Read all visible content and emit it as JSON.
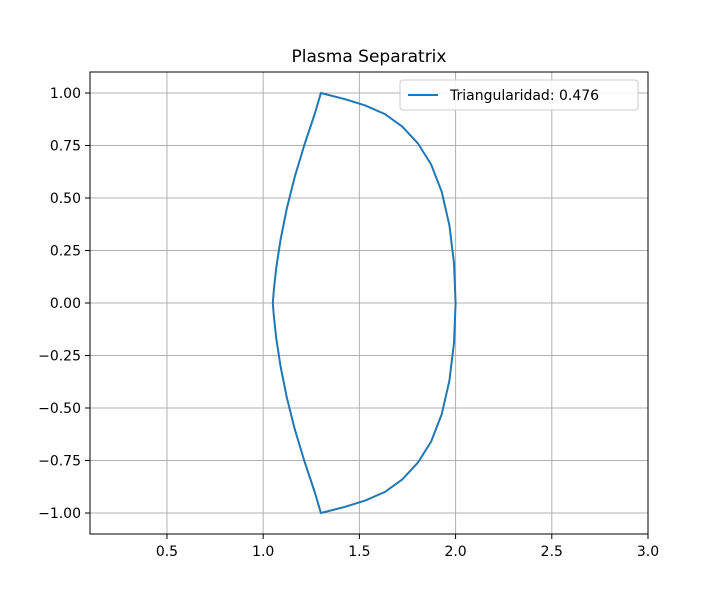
{
  "chart_data": {
    "type": "line",
    "title": "Plasma Separatrix",
    "xlabel": "",
    "ylabel": "",
    "xlim": [
      0.1,
      3.0
    ],
    "ylim": [
      -1.1,
      1.1
    ],
    "xticks": [
      0.5,
      1.0,
      1.5,
      2.0,
      2.5,
      3.0
    ],
    "xtick_labels": [
      "0.5",
      "1.0",
      "1.5",
      "2.0",
      "2.5",
      "3.0"
    ],
    "yticks": [
      1.0,
      0.75,
      0.5,
      0.25,
      0.0,
      -0.25,
      -0.5,
      -0.75,
      -1.0
    ],
    "ytick_labels": [
      "1.00",
      "0.75",
      "0.50",
      "0.25",
      "0.00",
      "−0.25",
      "−0.50",
      "−0.75",
      "−1.00"
    ],
    "grid": true,
    "legend_position": "top-right",
    "series": [
      {
        "name": "Triangularidad: 0.476",
        "color": "#1f77b4",
        "x": [
          2.0,
          1.992,
          1.968,
          1.928,
          1.873,
          1.804,
          1.723,
          1.632,
          1.532,
          1.428,
          1.3,
          1.268,
          1.213,
          1.164,
          1.123,
          1.09,
          1.068,
          1.055,
          1.05,
          1.055,
          1.068,
          1.09,
          1.123,
          1.164,
          1.213,
          1.268,
          1.3,
          1.428,
          1.532,
          1.632,
          1.723,
          1.804,
          1.873,
          1.928,
          1.968,
          1.992,
          2.0
        ],
        "y": [
          0.0,
          0.19,
          0.37,
          0.53,
          0.66,
          0.76,
          0.84,
          0.9,
          0.94,
          0.97,
          1.0,
          0.9,
          0.75,
          0.6,
          0.45,
          0.3,
          0.17,
          0.06,
          0.0,
          -0.06,
          -0.17,
          -0.3,
          -0.45,
          -0.6,
          -0.75,
          -0.9,
          -1.0,
          -0.97,
          -0.94,
          -0.9,
          -0.84,
          -0.76,
          -0.66,
          -0.53,
          -0.37,
          -0.19,
          0.0
        ]
      }
    ]
  }
}
